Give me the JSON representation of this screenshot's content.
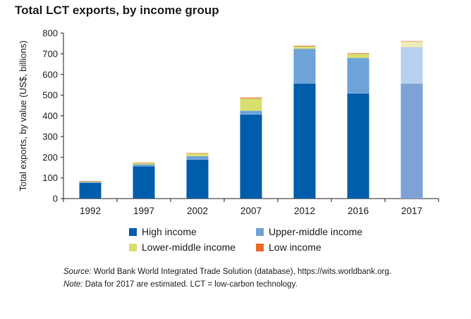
{
  "chart_data": {
    "type": "bar",
    "stacked": true,
    "title": "Total LCT exports, by income group",
    "ylabel": "Total exports, by value (US$, billions)",
    "xlabel": "",
    "ylim": [
      0,
      800
    ],
    "yticks": [
      0,
      100,
      200,
      300,
      400,
      500,
      600,
      700,
      800
    ],
    "grid": false,
    "legend_position": "bottom",
    "categories": [
      "1992",
      "1997",
      "2002",
      "2007",
      "2012",
      "2016",
      "2017"
    ],
    "estimated_categories": [
      "2017"
    ],
    "series": [
      {
        "name": "High income",
        "color": "#005dab",
        "estimated_color": "#7ea2d6",
        "values": [
          75,
          155,
          188,
          406,
          556,
          508,
          556
        ]
      },
      {
        "name": "Upper-middle income",
        "color": "#6ea3d8",
        "estimated_color": "#b7d0ee",
        "values": [
          5,
          10,
          17,
          18,
          168,
          172,
          176
        ]
      },
      {
        "name": "Lower-middle income",
        "color": "#d8df6f",
        "estimated_color": "#eeecb6",
        "values": [
          3,
          7,
          13,
          60,
          12,
          20,
          26
        ]
      },
      {
        "name": "Low income",
        "color": "#e96a2a",
        "estimated_color": "#f1a77c",
        "values": [
          2,
          2,
          2,
          4,
          3,
          3,
          4
        ]
      }
    ]
  },
  "notes": {
    "source_label": "Source:",
    "source_text": " World Bank World Integrated Trade Solution (database), https://wits.worldbank.org.",
    "note_label": "Note:",
    "note_text": " Data for 2017 are estimated. LCT = low-carbon technology."
  }
}
